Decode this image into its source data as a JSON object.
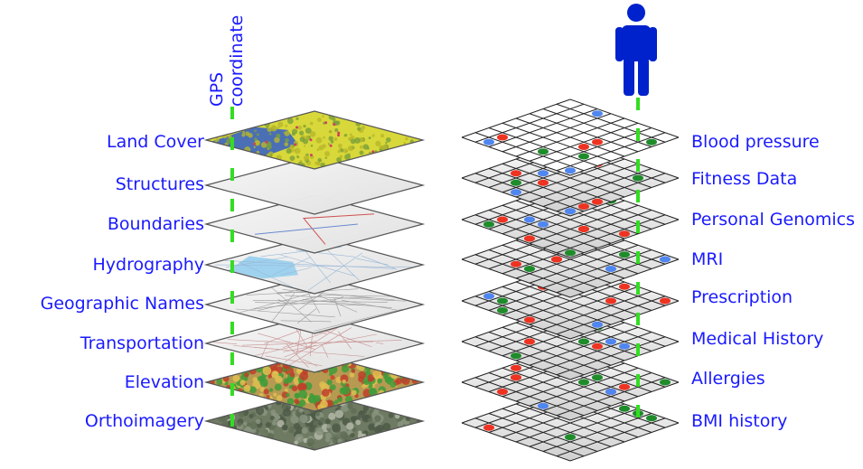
{
  "gps": {
    "label_line1": "GPS",
    "label_line2": "coordinate"
  },
  "geo_layers": [
    {
      "label": "Land Cover",
      "style": "landcover"
    },
    {
      "label": "Structures",
      "style": "blank"
    },
    {
      "label": "Boundaries",
      "style": "boundaries"
    },
    {
      "label": "Hydrography",
      "style": "hydro"
    },
    {
      "label": "Geographic Names",
      "style": "names"
    },
    {
      "label": "Transportation",
      "style": "transport"
    },
    {
      "label": "Elevation",
      "style": "elevation"
    },
    {
      "label": "Orthoimagery",
      "style": "ortho"
    }
  ],
  "health_layers": [
    {
      "label": "Blood pressure"
    },
    {
      "label": "Fitness Data"
    },
    {
      "label": "Personal Genomics"
    },
    {
      "label": "MRI"
    },
    {
      "label": "Prescription"
    },
    {
      "label": "Medical History"
    },
    {
      "label": "Allergies"
    },
    {
      "label": "BMI history"
    }
  ],
  "colors": {
    "label_text": "#1a1aff",
    "gps_line": "#33dd22",
    "person": "#0022cc",
    "dot_blue": "#4f86f0",
    "dot_red": "#ee3322",
    "dot_green": "#1e8c2a",
    "grid_line": "#222222",
    "landcover_base": "#d8d83a",
    "landcover_water": "#4a6fb5",
    "hydro_water": "#9ed2ee",
    "elev_green": "#3f9c3a",
    "elev_red": "#c0402a",
    "ortho_base": "#6f7a62"
  },
  "icons": {
    "person": "person-icon"
  }
}
